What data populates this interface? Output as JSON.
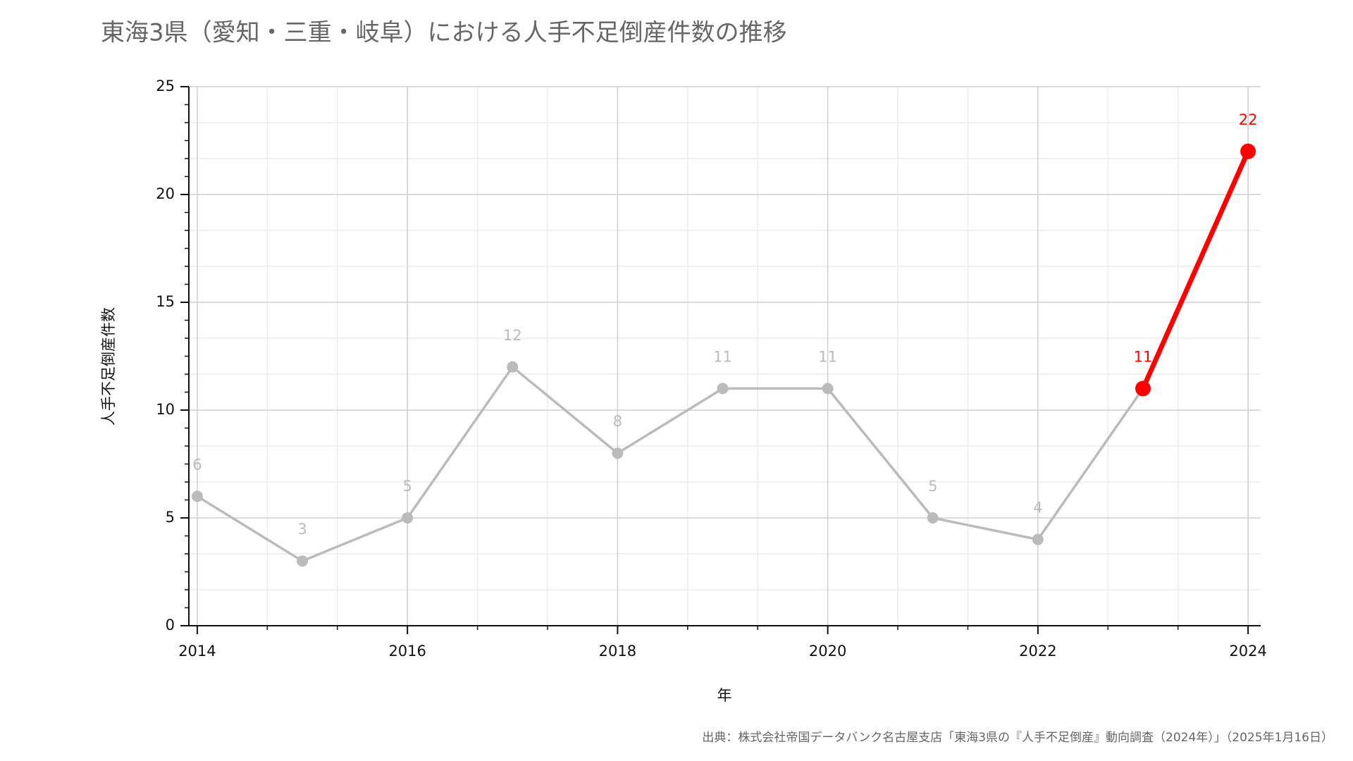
{
  "chart_data": {
    "type": "line",
    "title": "東海3県（愛知・三重・岐阜）における人手不足倒産件数の推移",
    "x_label": "年",
    "y_label": "人手不足倒産件数",
    "source": "出典：株式会社帝国データバンク名古屋支店「東海3県の『人手不足倒産』動向調査（2024年）」（2025年1月16日）",
    "x": [
      2014,
      2015,
      2016,
      2017,
      2018,
      2019,
      2020,
      2021,
      2022,
      2023,
      2024
    ],
    "series": [
      {
        "color": "#bbbbbb",
        "values": [
          6,
          3,
          5,
          12,
          8,
          11,
          11,
          5,
          4,
          11,
          null
        ]
      },
      {
        "color": "#ff0000",
        "values": [
          null,
          null,
          null,
          null,
          null,
          null,
          null,
          null,
          null,
          11,
          22
        ]
      }
    ],
    "xlim": [
      2013.92,
      2024.12
    ],
    "xticks": [
      2014,
      2016,
      2018,
      2020,
      2022,
      2024
    ],
    "ylim": [
      0,
      25
    ],
    "yticks": [
      0,
      5,
      10,
      15,
      20,
      25
    ],
    "grid": true,
    "minor_grid": true,
    "data_labels": true
  }
}
